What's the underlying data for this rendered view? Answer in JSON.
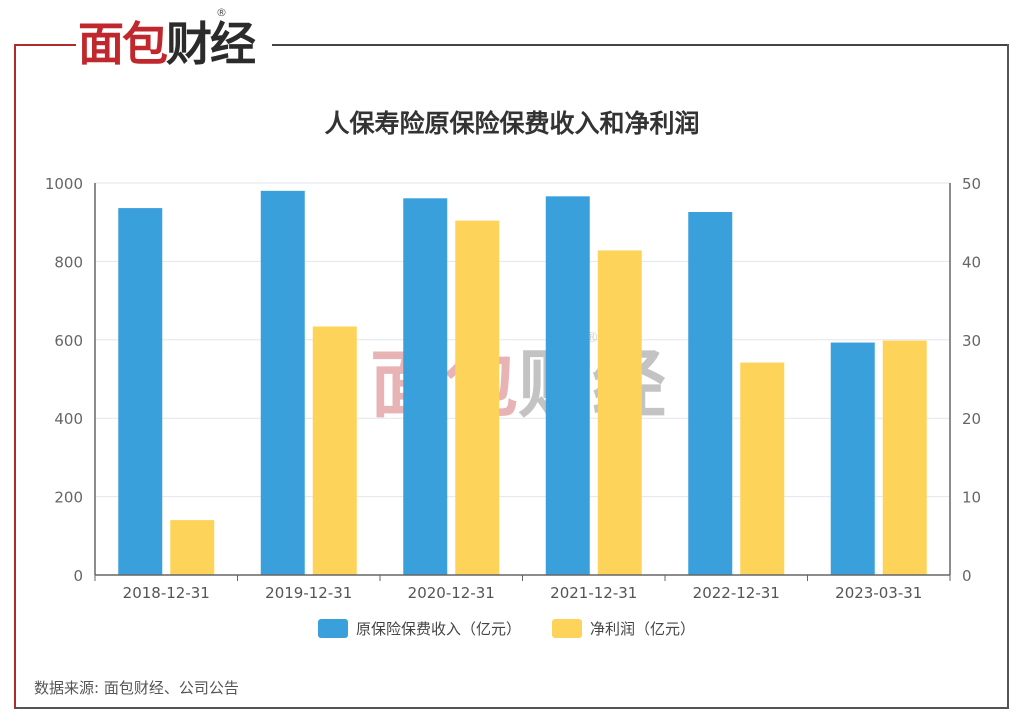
{
  "brand": {
    "name": "面包财经",
    "registered": "®"
  },
  "source_note": "数据来源: 面包财经、公司公告",
  "colors": {
    "bar_primary": "#3aa0dc",
    "bar_secondary": "#fdd35a",
    "frame_red": "#b22a2a",
    "grid": "#e3e6f0"
  },
  "chart_data": {
    "type": "bar",
    "title": "人保寿险原保险保费收入和净利润",
    "categories": [
      "2018-12-31",
      "2019-12-31",
      "2020-12-31",
      "2021-12-31",
      "2022-12-31",
      "2023-03-31"
    ],
    "series": [
      {
        "name": "原保险保费收入（亿元）",
        "axis": "left",
        "values": [
          936,
          980,
          961,
          966,
          926,
          593
        ]
      },
      {
        "name": "净利润（亿元）",
        "axis": "right",
        "values": [
          7.0,
          31.7,
          45.2,
          41.4,
          27.1,
          29.9
        ]
      }
    ],
    "ylim_left": [
      0,
      1000
    ],
    "yticks_left": [
      "0",
      "200",
      "400",
      "600",
      "800",
      "1000"
    ],
    "ylim_right": [
      0,
      50
    ],
    "yticks_right": [
      "0",
      "10",
      "20",
      "30",
      "40",
      "50"
    ],
    "grid": true,
    "legend_position": "bottom"
  }
}
